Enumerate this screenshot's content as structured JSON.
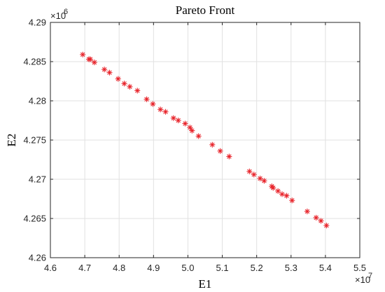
{
  "chart_data": {
    "type": "scatter",
    "title": "Pareto Front",
    "xlabel": "E1",
    "ylabel": "E2",
    "x_multiplier_label": "×10",
    "x_multiplier_exp": "7",
    "y_multiplier_label": "×10",
    "y_multiplier_exp": "6",
    "xlim": [
      4.6,
      5.5
    ],
    "ylim": [
      4.26,
      4.29
    ],
    "xticks": [
      "4.6",
      "4.7",
      "4.8",
      "4.9",
      "5.0",
      "5.1",
      "5.2",
      "5.3",
      "5.4",
      "5.5"
    ],
    "yticks": [
      "4.26",
      "4.265",
      "4.27",
      "4.275",
      "4.28",
      "4.285",
      "4.29"
    ],
    "grid": true,
    "marker": "asterisk",
    "marker_color": "#e8242b",
    "series": [
      {
        "points": [
          [
            4.694,
            4.2859
          ],
          [
            4.712,
            4.2853
          ],
          [
            4.716,
            4.2853
          ],
          [
            4.728,
            4.2849
          ],
          [
            4.757,
            4.284
          ],
          [
            4.772,
            4.2836
          ],
          [
            4.797,
            4.2828
          ],
          [
            4.815,
            4.2822
          ],
          [
            4.831,
            4.2818
          ],
          [
            4.853,
            4.2813
          ],
          [
            4.88,
            4.2802
          ],
          [
            4.898,
            4.2796
          ],
          [
            4.92,
            4.2789
          ],
          [
            4.935,
            4.2786
          ],
          [
            4.958,
            4.2778
          ],
          [
            4.972,
            4.2775
          ],
          [
            4.992,
            4.2771
          ],
          [
            5.006,
            4.2766
          ],
          [
            5.012,
            4.2762
          ],
          [
            5.031,
            4.2755
          ],
          [
            5.071,
            4.2744
          ],
          [
            5.094,
            4.2736
          ],
          [
            5.12,
            4.2729
          ],
          [
            5.179,
            4.271
          ],
          [
            5.192,
            4.2706
          ],
          [
            5.21,
            4.2701
          ],
          [
            5.222,
            4.2698
          ],
          [
            5.244,
            4.2691
          ],
          [
            5.248,
            4.2689
          ],
          [
            5.262,
            4.2685
          ],
          [
            5.274,
            4.2681
          ],
          [
            5.287,
            4.2679
          ],
          [
            5.303,
            4.2673
          ],
          [
            5.347,
            4.2659
          ],
          [
            5.373,
            4.2651
          ],
          [
            5.387,
            4.2647
          ],
          [
            5.403,
            4.2641
          ]
        ]
      }
    ]
  }
}
